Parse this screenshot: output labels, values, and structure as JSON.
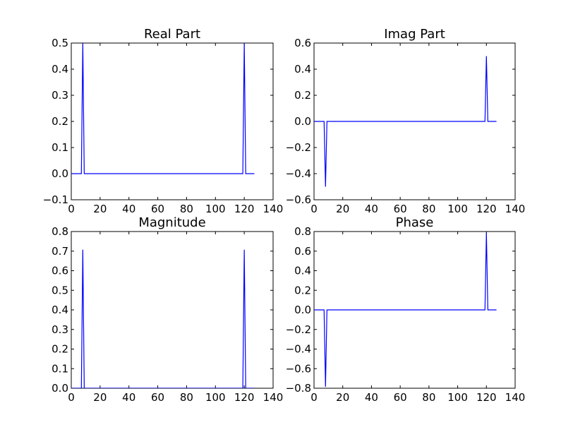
{
  "figure": {
    "background": "#ffffff",
    "line_color": "#0000ff"
  },
  "chart_data": [
    {
      "type": "line",
      "title": "Real Part",
      "xlabel": "",
      "ylabel": "",
      "xlim": [
        0,
        140
      ],
      "ylim": [
        -0.1,
        0.5
      ],
      "xticks": [
        "0",
        "20",
        "40",
        "60",
        "80",
        "100",
        "120",
        "140"
      ],
      "yticks": [
        "−0.1",
        "0.0",
        "0.1",
        "0.2",
        "0.3",
        "0.4",
        "0.5"
      ],
      "grid": false,
      "series": [
        {
          "x": [
            0,
            7,
            8,
            9,
            119,
            120,
            121,
            127
          ],
          "y": [
            0,
            0,
            0.5,
            0,
            0,
            0.5,
            0,
            0
          ]
        }
      ]
    },
    {
      "type": "line",
      "title": "Imag Part",
      "xlabel": "",
      "ylabel": "",
      "xlim": [
        0,
        140
      ],
      "ylim": [
        -0.6,
        0.6
      ],
      "xticks": [
        "0",
        "20",
        "40",
        "60",
        "80",
        "100",
        "120",
        "140"
      ],
      "yticks": [
        "−0.6",
        "−0.4",
        "−0.2",
        "0.0",
        "0.2",
        "0.4",
        "0.6"
      ],
      "grid": false,
      "series": [
        {
          "x": [
            0,
            7,
            8,
            9,
            119,
            120,
            121,
            127
          ],
          "y": [
            0,
            0,
            -0.5,
            0,
            0,
            0.5,
            0,
            0
          ]
        }
      ]
    },
    {
      "type": "line",
      "title": "Magnitude",
      "xlabel": "",
      "ylabel": "",
      "xlim": [
        0,
        140
      ],
      "ylim": [
        0.0,
        0.8
      ],
      "xticks": [
        "0",
        "20",
        "40",
        "60",
        "80",
        "100",
        "120",
        "140"
      ],
      "yticks": [
        "0.0",
        "0.1",
        "0.2",
        "0.3",
        "0.4",
        "0.5",
        "0.6",
        "0.7",
        "0.8"
      ],
      "grid": false,
      "series": [
        {
          "x": [
            0,
            7,
            8,
            9,
            119,
            120,
            121,
            127
          ],
          "y": [
            0,
            0,
            0.707,
            0,
            0,
            0.707,
            0,
            0
          ]
        }
      ]
    },
    {
      "type": "line",
      "title": "Phase",
      "xlabel": "",
      "ylabel": "",
      "xlim": [
        0,
        140
      ],
      "ylim": [
        -0.8,
        0.8
      ],
      "xticks": [
        "0",
        "20",
        "40",
        "60",
        "80",
        "100",
        "120",
        "140"
      ],
      "yticks": [
        "−0.8",
        "−0.6",
        "−0.4",
        "−0.2",
        "0.0",
        "0.2",
        "0.4",
        "0.6",
        "0.8"
      ],
      "grid": false,
      "series": [
        {
          "x": [
            0,
            7,
            8,
            9,
            119,
            120,
            121,
            127
          ],
          "y": [
            0,
            0,
            -0.785,
            0,
            0,
            0.785,
            0,
            0
          ]
        }
      ]
    }
  ]
}
